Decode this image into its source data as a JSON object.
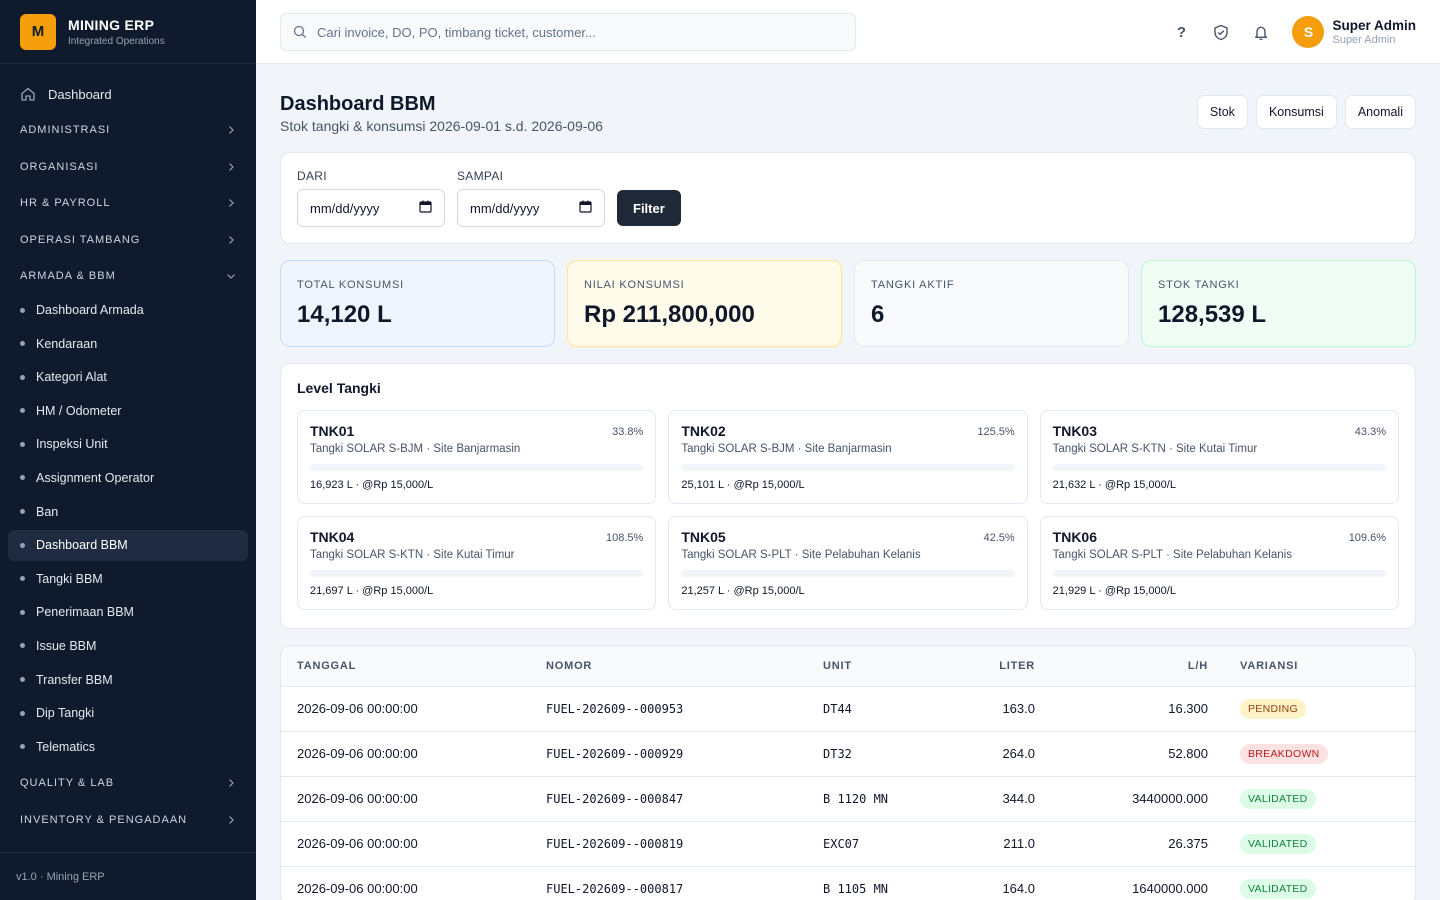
{
  "brand": {
    "logo": "M",
    "name": "MINING ERP",
    "sub": "Integrated Operations"
  },
  "nav": {
    "dashboard": "Dashboard",
    "sections": {
      "administrasi": "ADMINISTRASI",
      "organisasi": "ORGANISASI",
      "hr": "HR & PAYROLL",
      "operasi": "OPERASI TAMBANG",
      "armada": "ARMADA & BBM",
      "quality": "QUALITY & LAB",
      "inventory": "INVENTORY & PENGADAAN"
    },
    "items": [
      "Dashboard Armada",
      "Kendaraan",
      "Kategori Alat",
      "HM / Odometer",
      "Inspeksi Unit",
      "Assignment Operator",
      "Ban",
      "Dashboard BBM",
      "Tangki BBM",
      "Penerimaan BBM",
      "Issue BBM",
      "Transfer BBM",
      "Dip Tangki",
      "Telematics"
    ],
    "active_item": "Dashboard BBM",
    "footer": "v1.0 · Mining ERP"
  },
  "topbar": {
    "search_placeholder": "Cari invoice, DO, PO, timbang ticket, customer...",
    "help": "?",
    "user": {
      "initial": "S",
      "name": "Super Admin",
      "role": "Super Admin"
    }
  },
  "page": {
    "title": "Dashboard BBM",
    "subtitle": "Stok tangki & konsumsi 2026-09-01 s.d. 2026-09-06",
    "buttons": {
      "stok": "Stok",
      "konsumsi": "Konsumsi",
      "anomali": "Anomali"
    }
  },
  "filter": {
    "from_label": "DARI",
    "to_label": "SAMPAI",
    "date_placeholder": "mm/dd/yyyy",
    "button": "Filter"
  },
  "stats": {
    "total_konsumsi": {
      "label": "TOTAL KONSUMSI",
      "value": "14,120 L"
    },
    "nilai_konsumsi": {
      "label": "NILAI KONSUMSI",
      "value": "Rp 211,800,000"
    },
    "tangki_aktif": {
      "label": "TANGKI AKTIF",
      "value": "6"
    },
    "stok_tangki": {
      "label": "STOK TANGKI",
      "value": "128,539 L"
    }
  },
  "tanks": {
    "title": "Level Tangki",
    "items": [
      {
        "code": "TNK01",
        "pct": "33.8%",
        "desc": "Tangki SOLAR S-BJM · Site Banjarmasin",
        "info": "16,923 L · @Rp 15,000/L"
      },
      {
        "code": "TNK02",
        "pct": "125.5%",
        "desc": "Tangki SOLAR S-BJM · Site Banjarmasin",
        "info": "25,101 L · @Rp 15,000/L"
      },
      {
        "code": "TNK03",
        "pct": "43.3%",
        "desc": "Tangki SOLAR S-KTN · Site Kutai Timur",
        "info": "21,632 L · @Rp 15,000/L"
      },
      {
        "code": "TNK04",
        "pct": "108.5%",
        "desc": "Tangki SOLAR S-KTN · Site Kutai Timur",
        "info": "21,697 L · @Rp 15,000/L"
      },
      {
        "code": "TNK05",
        "pct": "42.5%",
        "desc": "Tangki SOLAR S-PLT · Site Pelabuhan Kelanis",
        "info": "21,257 L · @Rp 15,000/L"
      },
      {
        "code": "TNK06",
        "pct": "109.6%",
        "desc": "Tangki SOLAR S-PLT · Site Pelabuhan Kelanis",
        "info": "21,929 L · @Rp 15,000/L"
      }
    ]
  },
  "table": {
    "headers": {
      "tanggal": "TANGGAL",
      "nomor": "NOMOR",
      "unit": "UNIT",
      "liter": "LITER",
      "lh": "L/H",
      "variansi": "VARIANSI"
    },
    "rows": [
      {
        "tanggal": "2026-09-06 00:00:00",
        "nomor": "FUEL-202609--000953",
        "unit": "DT44",
        "liter": "163.0",
        "lh": "16.300",
        "variansi": "PENDING"
      },
      {
        "tanggal": "2026-09-06 00:00:00",
        "nomor": "FUEL-202609--000929",
        "unit": "DT32",
        "liter": "264.0",
        "lh": "52.800",
        "variansi": "BREAKDOWN"
      },
      {
        "tanggal": "2026-09-06 00:00:00",
        "nomor": "FUEL-202609--000847",
        "unit": "B 1120 MN",
        "liter": "344.0",
        "lh": "3440000.000",
        "variansi": "VALIDATED"
      },
      {
        "tanggal": "2026-09-06 00:00:00",
        "nomor": "FUEL-202609--000819",
        "unit": "EXC07",
        "liter": "211.0",
        "lh": "26.375",
        "variansi": "VALIDATED"
      },
      {
        "tanggal": "2026-09-06 00:00:00",
        "nomor": "FUEL-202609--000817",
        "unit": "B 1105 MN",
        "liter": "164.0",
        "lh": "1640000.000",
        "variansi": "VALIDATED"
      }
    ]
  },
  "colors": {
    "sidebar_bg": "#0f1b2d",
    "accent": "#f59e0b",
    "primary_button": "#1f2937"
  }
}
